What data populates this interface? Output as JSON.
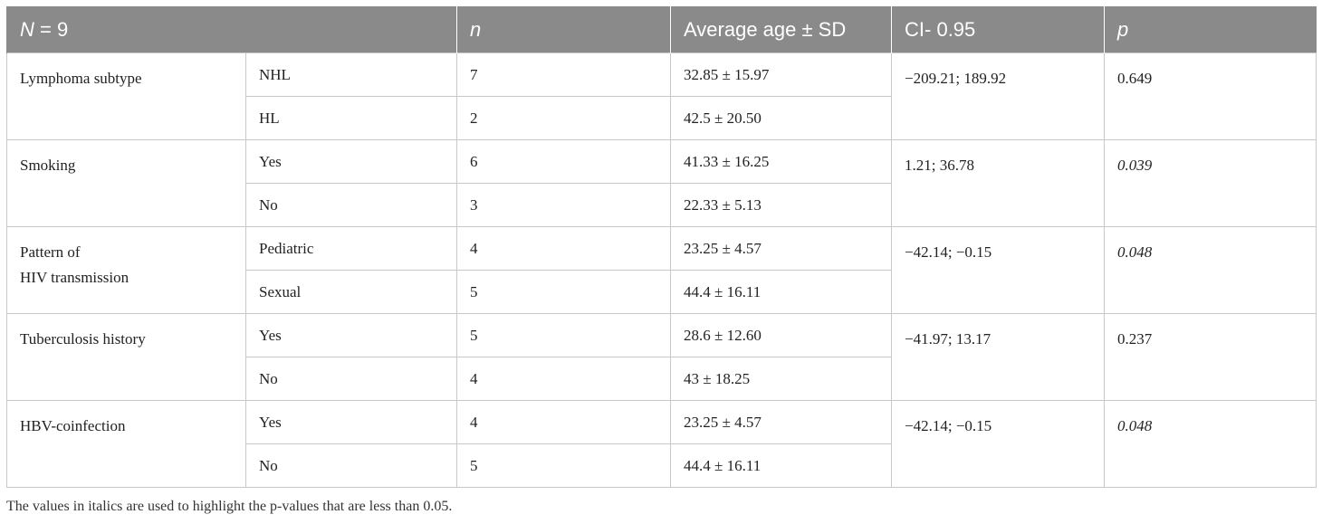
{
  "header": {
    "col1_var": "N",
    "col1_rest": " = 9",
    "col_n": "n",
    "col_age": "Average age ± SD",
    "col_ci": "CI- 0.95",
    "col_p": "p"
  },
  "groups": [
    {
      "label": "Lymphoma subtype",
      "ci": "−209.21; 189.92",
      "p": "0.649",
      "p_italic": false,
      "rows": [
        {
          "category": "NHL",
          "n": "7",
          "age": "32.85 ± 15.97"
        },
        {
          "category": "HL",
          "n": "2",
          "age": "42.5 ± 20.50"
        }
      ]
    },
    {
      "label": "Smoking",
      "ci": "1.21; 36.78",
      "p": "0.039",
      "p_italic": true,
      "rows": [
        {
          "category": "Yes",
          "n": "6",
          "age": "41.33 ± 16.25"
        },
        {
          "category": "No",
          "n": "3",
          "age": "22.33 ± 5.13"
        }
      ]
    },
    {
      "label": "Pattern of HIV transmission",
      "label_line1": "Pattern of",
      "label_line2": "HIV transmission",
      "ci": "−42.14; −0.15",
      "p": "0.048",
      "p_italic": true,
      "rows": [
        {
          "category": "Pediatric",
          "n": "4",
          "age": "23.25 ± 4.57"
        },
        {
          "category": "Sexual",
          "n": "5",
          "age": "44.4 ± 16.11"
        }
      ]
    },
    {
      "label": "Tuberculosis history",
      "ci": "−41.97; 13.17",
      "p": "0.237",
      "p_italic": false,
      "rows": [
        {
          "category": "Yes",
          "n": "5",
          "age": "28.6 ± 12.60"
        },
        {
          "category": "No",
          "n": "4",
          "age": "43 ± 18.25"
        }
      ]
    },
    {
      "label": "HBV-coinfection",
      "ci": "−42.14; −0.15",
      "p": "0.048",
      "p_italic": true,
      "rows": [
        {
          "category": "Yes",
          "n": "4",
          "age": "23.25 ± 4.57"
        },
        {
          "category": "No",
          "n": "5",
          "age": "44.4 ± 16.11"
        }
      ]
    }
  ],
  "footnote": "The values in italics are used to highlight the p-values that are less than 0.05.",
  "colors": {
    "header_bg": "#8a8a8a",
    "header_text": "#ffffff",
    "border": "#c8c8c8"
  }
}
